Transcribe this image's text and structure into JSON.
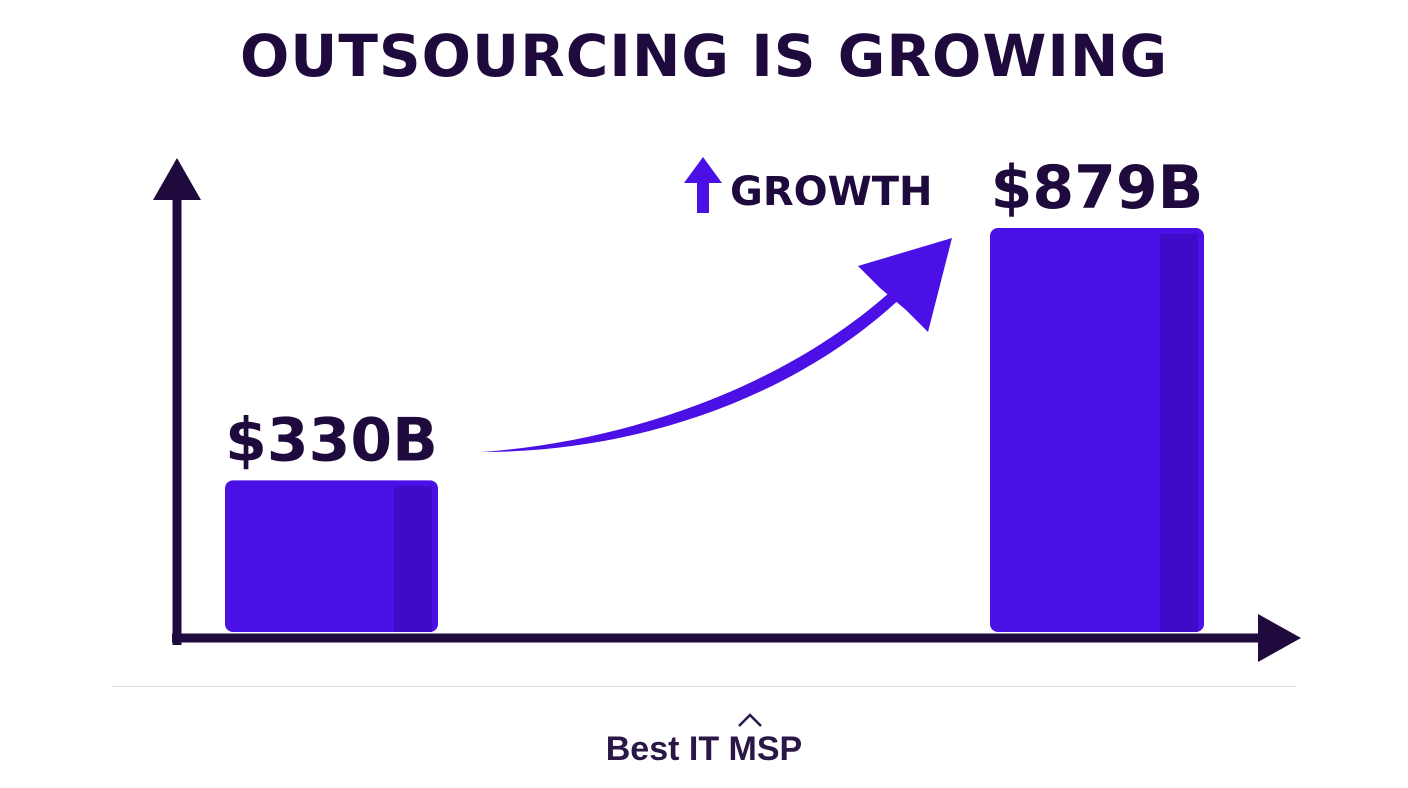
{
  "title": "OUTSOURCING IS GROWING",
  "growth_label": "GROWTH",
  "footer_brand": "Best IT MSP",
  "colors": {
    "bar": "#4a10e6",
    "bar_shade": "#3608b0",
    "axis": "#1e0a3c",
    "text": "#1e0a3c",
    "arrow": "#4a10e6"
  },
  "icons": [
    "up-arrow-icon",
    "growth-curve-arrow-icon",
    "caret-up-icon"
  ],
  "chart_data": {
    "type": "bar",
    "title": "OUTSOURCING IS GROWING",
    "categories": [
      "",
      ""
    ],
    "values": [
      330,
      879
    ],
    "value_labels": [
      "$330B",
      "$879B"
    ],
    "unit": "$B",
    "annotation": "GROWTH",
    "xlabel": "",
    "ylabel": "",
    "grid": false
  }
}
